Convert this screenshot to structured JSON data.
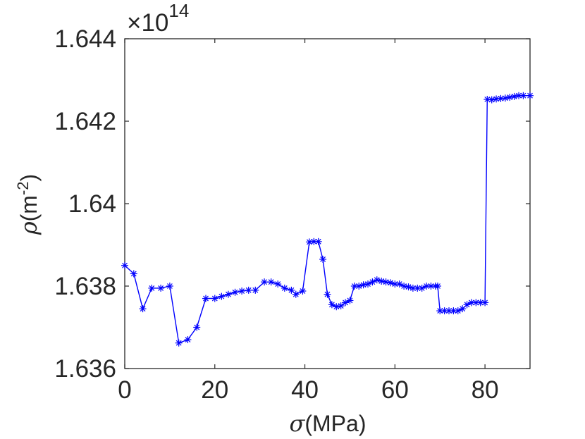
{
  "chart_data": {
    "type": "line",
    "x_axis": {
      "symbol": "σ",
      "label": "(MPa)",
      "range": [
        0,
        90
      ],
      "ticks": [
        0,
        20,
        40,
        60,
        80
      ],
      "tick_labels": [
        "0",
        "20",
        "40",
        "60",
        "80"
      ]
    },
    "y_axis": {
      "symbol": "ρ",
      "label_base": "(m",
      "label_sup": "-2",
      "label_end": ")",
      "range": [
        1.636,
        1.644
      ],
      "ticks": [
        1.636,
        1.638,
        1.64,
        1.642,
        1.644
      ],
      "tick_labels": [
        "1.636",
        "1.638",
        "1.64",
        "1.642",
        "1.644"
      ],
      "multiplier": "×10",
      "multiplier_exp": "14"
    },
    "grid": false,
    "series": [
      {
        "color": "#0000ff",
        "marker": "asterisk",
        "points": [
          [
            0,
            1.6385
          ],
          [
            2,
            1.6383
          ],
          [
            4,
            1.63745
          ],
          [
            6,
            1.63795
          ],
          [
            8,
            1.63795
          ],
          [
            10,
            1.638
          ],
          [
            12,
            1.63662
          ],
          [
            14,
            1.6367
          ],
          [
            16,
            1.637
          ],
          [
            18,
            1.6377
          ],
          [
            20,
            1.6377
          ],
          [
            21.5,
            1.63775
          ],
          [
            23,
            1.6378
          ],
          [
            24.5,
            1.63785
          ],
          [
            26,
            1.63788
          ],
          [
            27.5,
            1.6379
          ],
          [
            29,
            1.6379
          ],
          [
            31,
            1.6381
          ],
          [
            32.5,
            1.6381
          ],
          [
            34,
            1.63805
          ],
          [
            35.5,
            1.63795
          ],
          [
            37,
            1.6379
          ],
          [
            38,
            1.6378
          ],
          [
            39.5,
            1.63788
          ],
          [
            41,
            1.63907
          ],
          [
            42,
            1.63908
          ],
          [
            43,
            1.63908
          ],
          [
            44,
            1.63865
          ],
          [
            45,
            1.6378
          ],
          [
            46,
            1.63755
          ],
          [
            47,
            1.6375
          ],
          [
            48,
            1.63752
          ],
          [
            49,
            1.6376
          ],
          [
            50,
            1.63765
          ],
          [
            51,
            1.638
          ],
          [
            52,
            1.638
          ],
          [
            53,
            1.63803
          ],
          [
            54,
            1.63805
          ],
          [
            55,
            1.6381
          ],
          [
            56,
            1.63815
          ],
          [
            57,
            1.63812
          ],
          [
            58,
            1.6381
          ],
          [
            59,
            1.63808
          ],
          [
            60,
            1.63805
          ],
          [
            61,
            1.63805
          ],
          [
            62,
            1.638
          ],
          [
            63,
            1.63798
          ],
          [
            64,
            1.63795
          ],
          [
            65,
            1.63795
          ],
          [
            66,
            1.63795
          ],
          [
            67,
            1.638
          ],
          [
            68,
            1.638
          ],
          [
            69,
            1.638
          ],
          [
            69.5,
            1.638
          ],
          [
            70,
            1.6374
          ],
          [
            71,
            1.6374
          ],
          [
            72,
            1.6374
          ],
          [
            73,
            1.6374
          ],
          [
            74,
            1.6374
          ],
          [
            75,
            1.63745
          ],
          [
            76,
            1.63755
          ],
          [
            77,
            1.6376
          ],
          [
            78,
            1.6376
          ],
          [
            79,
            1.6376
          ],
          [
            80,
            1.6376
          ],
          [
            80.5,
            1.64253
          ],
          [
            81.5,
            1.64252
          ],
          [
            82.5,
            1.64254
          ],
          [
            83.5,
            1.64255
          ],
          [
            84.5,
            1.64256
          ],
          [
            85.5,
            1.64258
          ],
          [
            86.5,
            1.6426
          ],
          [
            87.5,
            1.64262
          ],
          [
            88.5,
            1.64262
          ],
          [
            90,
            1.64262
          ]
        ]
      }
    ]
  }
}
